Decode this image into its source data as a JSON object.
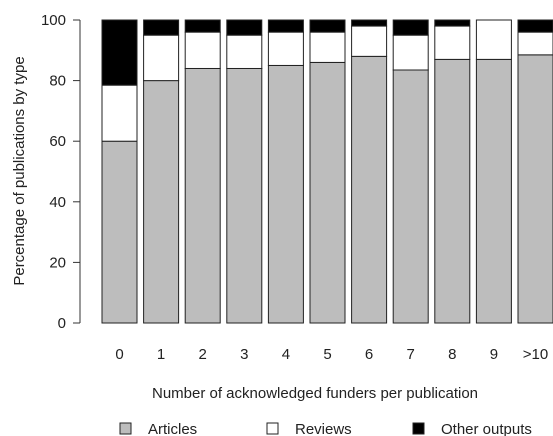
{
  "chart_data": {
    "type": "bar",
    "stacked": true,
    "title": "",
    "xlabel": "Number of acknowledged funders per publication",
    "ylabel": "Percentage of publications by type",
    "ylim": [
      0,
      100
    ],
    "yticks": [
      0,
      20,
      40,
      60,
      80,
      100
    ],
    "categories": [
      "0",
      "1",
      "2",
      "3",
      "4",
      "5",
      "6",
      "7",
      "8",
      "9",
      ">10"
    ],
    "series": [
      {
        "name": "Articles",
        "color": "#bdbdbd",
        "values": [
          60,
          80,
          84,
          84,
          85,
          86,
          88,
          83.5,
          87,
          87,
          88.5
        ]
      },
      {
        "name": "Reviews",
        "color": "#ffffff",
        "values": [
          18.5,
          15,
          12,
          11,
          11,
          10,
          10,
          11.5,
          11,
          13,
          7.5
        ]
      },
      {
        "name": "Other outputs",
        "color": "#000000",
        "values": [
          21.5,
          5,
          4,
          5,
          4,
          4,
          2,
          5,
          2,
          0,
          4
        ]
      }
    ],
    "legend_position": "bottom",
    "grid": false
  }
}
